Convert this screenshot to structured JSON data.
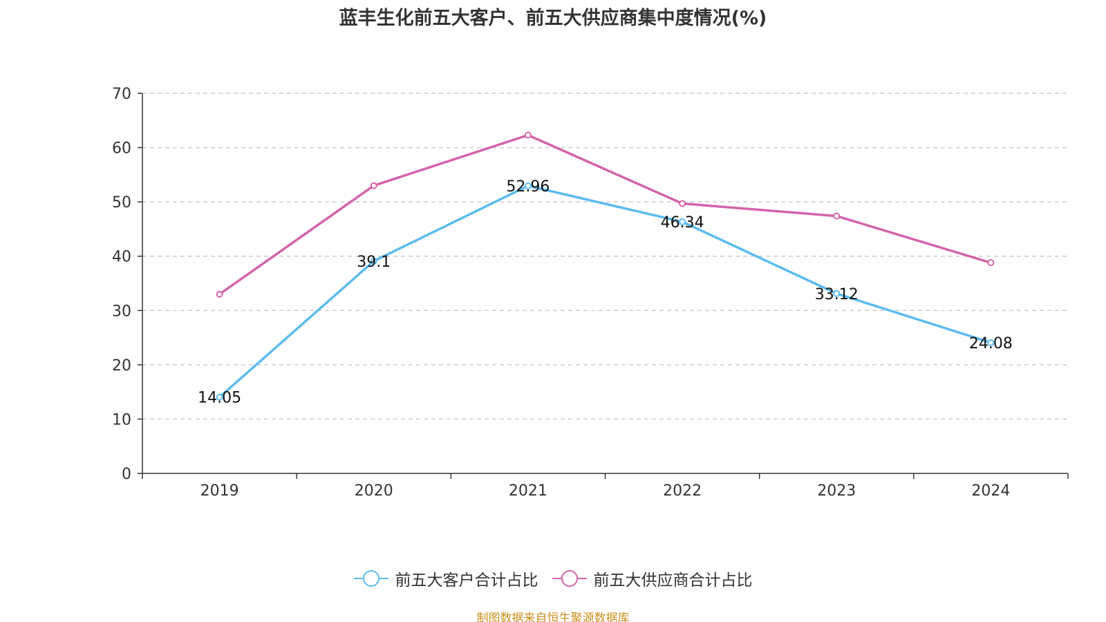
{
  "title": "蓝丰生化前五大客户、前五大供应商集中度情况(%)",
  "source": "制图数据来自恒生聚源数据库",
  "colors": {
    "customers": "#5bbcf0",
    "suppliers": "#d364ab",
    "grid": "#cccccc",
    "axis": "#333333"
  },
  "chart_data": {
    "type": "line",
    "title": "蓝丰生化前五大客户、前五大供应商集中度情况(%)",
    "categories": [
      "2019",
      "2020",
      "2021",
      "2022",
      "2023",
      "2024"
    ],
    "ylim": [
      0,
      70
    ],
    "yticks": [
      0,
      10,
      20,
      30,
      40,
      50,
      60,
      70
    ],
    "grid": true,
    "legend_position": "bottom",
    "series": [
      {
        "name": "前五大客户合计占比",
        "values": [
          14.05,
          39.1,
          52.96,
          46.34,
          33.12,
          24.08
        ],
        "data_labels": [
          "14.05",
          "39.1",
          "52.96",
          "46.34",
          "33.12",
          "24.08"
        ]
      },
      {
        "name": "前五大供应商合计占比",
        "values": [
          33.0,
          53.0,
          62.3,
          49.7,
          47.4,
          38.8
        ],
        "data_labels": []
      }
    ]
  }
}
